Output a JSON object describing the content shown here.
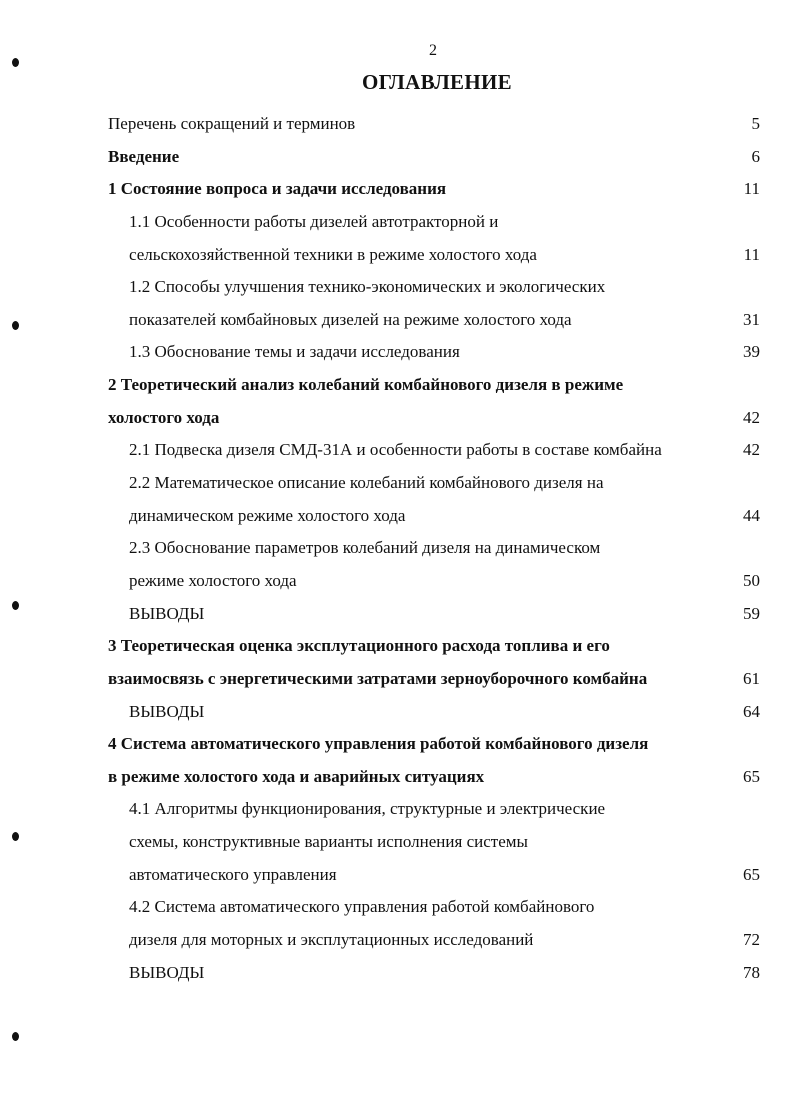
{
  "page_number": "2",
  "title": "ОГЛАВЛЕНИЕ",
  "entries": [
    {
      "level": 0,
      "bold": false,
      "lines": [
        "Перечень сокращений и терминов"
      ],
      "page": "5"
    },
    {
      "level": 0,
      "bold": true,
      "lines": [
        "Введение"
      ],
      "page": "6"
    },
    {
      "level": 0,
      "bold": true,
      "lines": [
        "1 Состояние вопроса и задачи исследования"
      ],
      "page": "11"
    },
    {
      "level": 1,
      "bold": false,
      "lines": [
        "1.1 Особенности работы дизелей автотракторной и",
        "сельскохозяйственной техники  в режиме холостого хода"
      ],
      "page": "11"
    },
    {
      "level": 1,
      "bold": false,
      "lines": [
        "1.2 Способы улучшения технико-экономических и экологических",
        "показателей комбайновых дизелей на режиме холостого хода"
      ],
      "page": "31"
    },
    {
      "level": 1,
      "bold": false,
      "lines": [
        "1.3 Обоснование темы и задачи исследования"
      ],
      "page": "39"
    },
    {
      "level": 0,
      "bold": true,
      "lines": [
        "2 Теоретический анализ колебаний комбайнового дизеля  в режиме",
        "холостого хода"
      ],
      "page": "42"
    },
    {
      "level": 1,
      "bold": false,
      "lines": [
        "2.1 Подвеска дизеля СМД-31А и особенности работы в составе комбайна"
      ],
      "page": "42"
    },
    {
      "level": 1,
      "bold": false,
      "lines": [
        "2.2 Математическое описание колебаний комбайнового дизеля на",
        "динамическом режиме холостого хода"
      ],
      "page": "44"
    },
    {
      "level": 1,
      "bold": false,
      "lines": [
        "2.3 Обоснование параметров колебаний дизеля на динамическом",
        "режиме холостого хода"
      ],
      "page": "50"
    },
    {
      "level": 1,
      "bold": false,
      "lines": [
        "ВЫВОДЫ"
      ],
      "page": "59"
    },
    {
      "level": 0,
      "bold": true,
      "lines": [
        "3 Теоретическая оценка эксплутационного расхода топлива и его",
        "взаимосвязь с энергетическими затратами зерноуборочного комбайна"
      ],
      "page": "61"
    },
    {
      "level": 1,
      "bold": false,
      "lines": [
        "ВЫВОДЫ"
      ],
      "page": "64"
    },
    {
      "level": 0,
      "bold": true,
      "lines": [
        "4 Система автоматического управления работой комбайнового дизеля",
        "в режиме холостого хода и  аварийных ситуациях"
      ],
      "page": "65"
    },
    {
      "level": 1,
      "bold": false,
      "lines": [
        "4.1 Алгоритмы функционирования, структурные и электрические",
        "схемы, конструктивные варианты исполнения системы",
        "автоматического управления"
      ],
      "page": "65"
    },
    {
      "level": 1,
      "bold": false,
      "lines": [
        "4.2 Система автоматического управления работой комбайнового",
        "дизеля для моторных и эксплутационных исследований"
      ],
      "page": "72"
    },
    {
      "level": 1,
      "bold": false,
      "lines": [
        "ВЫВОДЫ"
      ],
      "page": "78"
    }
  ]
}
